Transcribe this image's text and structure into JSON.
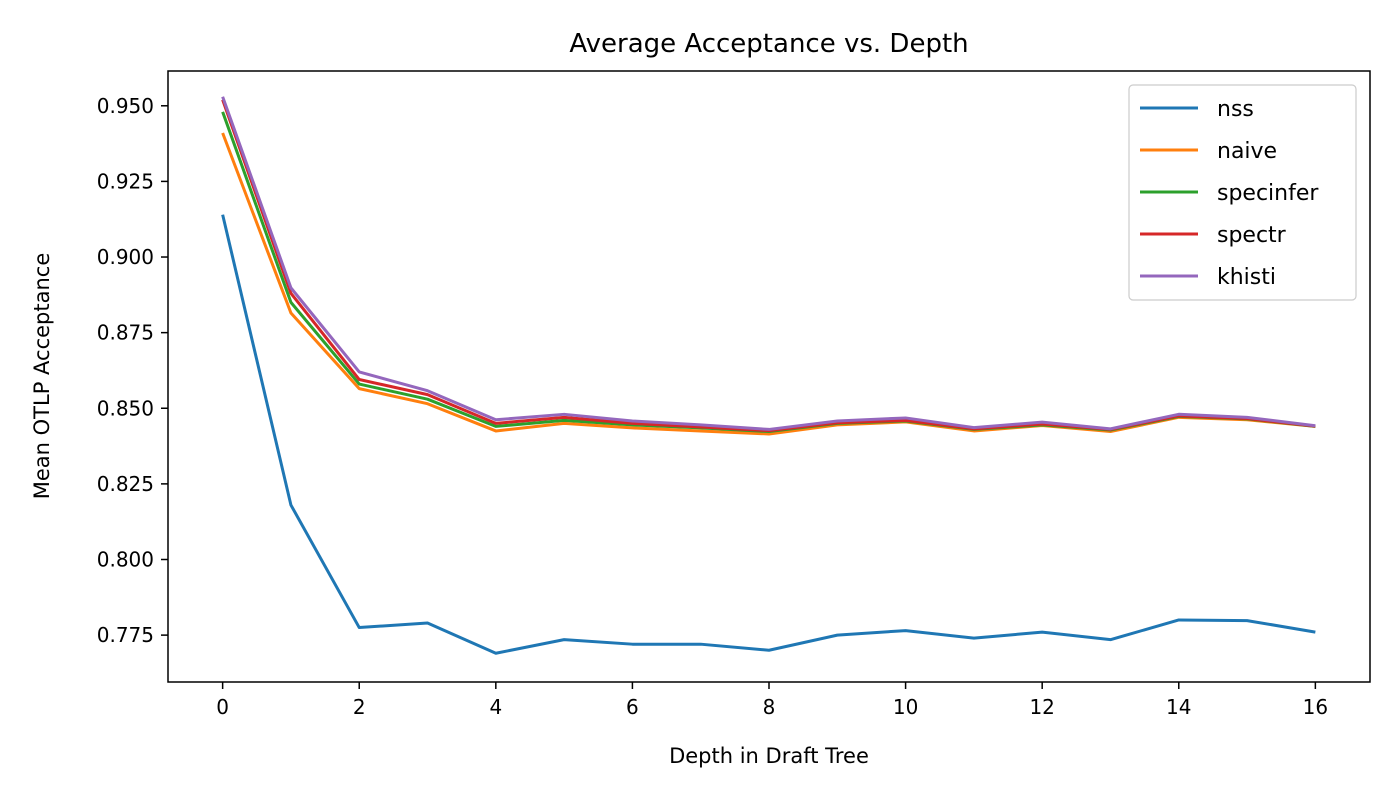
{
  "chart_data": {
    "type": "line",
    "title": "Average Acceptance vs. Depth",
    "xlabel": "Depth in Draft Tree",
    "ylabel": "Mean OTLP Acceptance",
    "xlim": [
      -0.8,
      16.8
    ],
    "ylim": [
      0.7595,
      0.9615
    ],
    "xticks": [
      0,
      2,
      4,
      6,
      8,
      10,
      12,
      14,
      16
    ],
    "xtick_labels": [
      "0",
      "2",
      "4",
      "6",
      "8",
      "10",
      "12",
      "14",
      "16"
    ],
    "yticks": [
      0.775,
      0.8,
      0.825,
      0.85,
      0.875,
      0.9,
      0.925,
      0.95
    ],
    "ytick_labels": [
      "0.775",
      "0.800",
      "0.825",
      "0.850",
      "0.875",
      "0.900",
      "0.925",
      "0.950"
    ],
    "grid": false,
    "legend_position": "top-right",
    "x": [
      0,
      1,
      2,
      3,
      4,
      5,
      6,
      7,
      8,
      9,
      10,
      11,
      12,
      13,
      14,
      15,
      16
    ],
    "series": [
      {
        "name": "nss",
        "color": "#1f77b4",
        "values": [
          0.914,
          0.818,
          0.7775,
          0.779,
          0.769,
          0.7735,
          0.772,
          0.772,
          0.77,
          0.775,
          0.7765,
          0.774,
          0.776,
          0.7735,
          0.78,
          0.7798,
          0.776
        ]
      },
      {
        "name": "naive",
        "color": "#ff7f0e",
        "values": [
          0.941,
          0.8815,
          0.8565,
          0.8515,
          0.8425,
          0.845,
          0.8435,
          0.8425,
          0.8415,
          0.8445,
          0.8455,
          0.8425,
          0.8443,
          0.8423,
          0.847,
          0.8462,
          0.844
        ]
      },
      {
        "name": "specinfer",
        "color": "#2ca02c",
        "values": [
          0.948,
          0.885,
          0.858,
          0.853,
          0.844,
          0.846,
          0.8445,
          0.8435,
          0.8423,
          0.845,
          0.8458,
          0.843,
          0.8445,
          0.8428,
          0.8473,
          0.8465,
          0.844
        ]
      },
      {
        "name": "spectr",
        "color": "#d62728",
        "values": [
          0.952,
          0.888,
          0.8595,
          0.8545,
          0.845,
          0.847,
          0.845,
          0.8438,
          0.8426,
          0.8452,
          0.846,
          0.8432,
          0.8448,
          0.843,
          0.8475,
          0.8466,
          0.8441
        ]
      },
      {
        "name": "khisti",
        "color": "#9467bd",
        "values": [
          0.953,
          0.8898,
          0.862,
          0.8558,
          0.8462,
          0.848,
          0.8458,
          0.8445,
          0.843,
          0.8458,
          0.8468,
          0.8436,
          0.8454,
          0.8432,
          0.848,
          0.847,
          0.8442
        ]
      }
    ]
  }
}
